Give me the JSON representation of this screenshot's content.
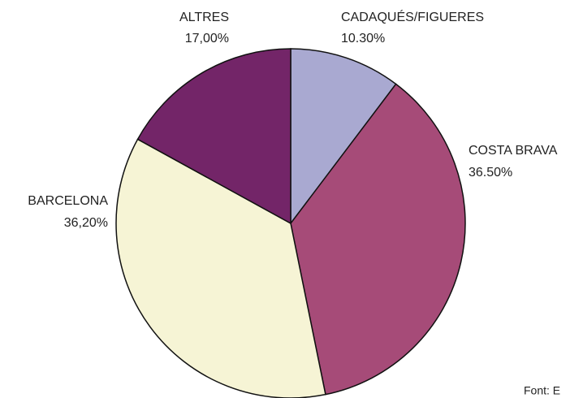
{
  "chart_data": {
    "type": "pie",
    "categories": [
      "CADAQUÉS/FIGUERES",
      "COSTA BRAVA",
      "BARCELONA",
      "ALTRES"
    ],
    "values": [
      10.3,
      36.5,
      36.2,
      17.0
    ],
    "value_labels": [
      "10.30%",
      "36.50%",
      "36,20%",
      "17,00%"
    ],
    "colors": [
      "#a9a9d1",
      "#a64b78",
      "#f6f4d5",
      "#732568"
    ],
    "source": "Font: E"
  }
}
